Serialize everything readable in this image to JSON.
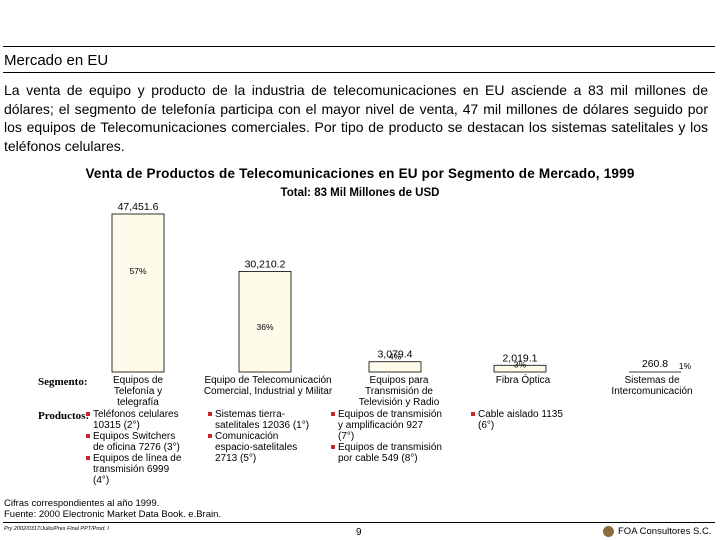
{
  "heading": "Mercado en EU",
  "intro": "La venta de equipo y producto de la industria de telecomunicaciones en EU asciende a 83 mil millones de dólares; el segmento de telefonía participa con el mayor nivel de venta, 47 mil millones de dólares seguido por los equipos de Telecomunicaciones comerciales. Por tipo de producto se destacan los sistemas satelitales y los teléfonos celulares.",
  "chart_data": {
    "type": "bar",
    "title": "Venta de Productos de Telecomunicaciones en EU por Segmento de Mercado, 1999",
    "subtitle": "Total: 83 Mil Millones de USD",
    "value_labels": [
      "47,451.6",
      "30,210.2",
      "3,079.4",
      "2,019.1",
      "260.8"
    ],
    "values": [
      47451.6,
      30210.2,
      3079.4,
      2019.1,
      260.8
    ],
    "percent_labels": [
      "57%",
      "36%",
      "4%",
      "3%",
      "1%"
    ],
    "bar_color": "#fffbea",
    "ylim": [
      0,
      47451.6
    ]
  },
  "row_labels": {
    "segment": "Segmento:",
    "products": "Productos:"
  },
  "segments": [
    [
      "Equipos de",
      "Telefonía y",
      "telegrafía"
    ],
    [
      "Equipo de Telecomunicación",
      "Comercial, Industrial y Militar"
    ],
    [
      "Equipos para",
      "Transmisión de",
      "Televisión y Radio"
    ],
    [
      "Fibra Óptica"
    ],
    [
      "Sistemas de",
      "Intercomunicación"
    ]
  ],
  "products": [
    [
      {
        "lines": [
          "Teléfonos celulares",
          "10315 (2°)"
        ]
      },
      {
        "lines": [
          "Equipos Switchers",
          "de oficina  7276 (3°)"
        ]
      },
      {
        "lines": [
          "Equipos de línea de",
          "transmisión  6999",
          "(4°)"
        ]
      }
    ],
    [
      {
        "lines": [
          "Sistemas tierra-",
          "satelitales  12036 (1°)"
        ]
      },
      {
        "lines": [
          "Comunicación",
          "espacio-satelitales",
          "2713 (5°)"
        ]
      }
    ],
    [
      {
        "lines": [
          "Equipos de transmisión",
          "y amplificación  927",
          "(7°)"
        ]
      },
      {
        "lines": [
          "Equipos de transmisión",
          "por cable  549 (8°)"
        ]
      }
    ],
    [
      {
        "lines": [
          "Cable aislado    1135",
          "(6°)"
        ]
      }
    ],
    []
  ],
  "source_note": [
    "Cifras correspondientes al año 1999.",
    "Fuente: 2000 Electronic Market Data Book. e.Brain."
  ],
  "doc_code": "Pry 2002/0317/Julio/Pres Final PPT/Prod. I",
  "page_number": "9",
  "company": "FOA Consultores S.C."
}
